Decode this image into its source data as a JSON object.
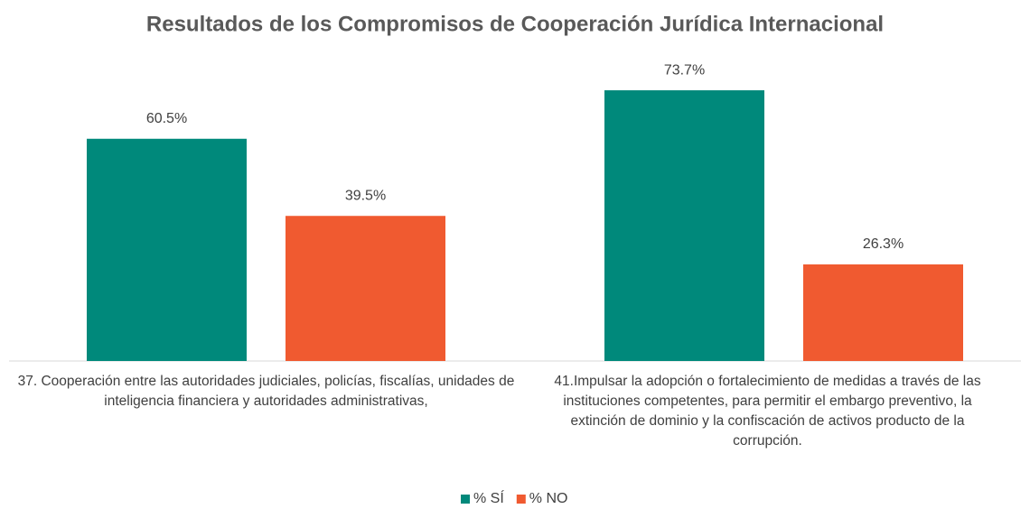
{
  "chart_data": {
    "type": "bar",
    "title": "Resultados de los Compromisos de Cooperación Jurídica Internacional",
    "categories": [
      "37. Cooperación entre las autoridades judiciales, policías, fiscalías, unidades de inteligencia financiera y autoridades administrativas,",
      "41.Impulsar la adopción o fortalecimiento de medidas a través de las instituciones competentes, para permitir el embargo preventivo, la extinción de dominio y la confiscación de activos producto de la corrupción."
    ],
    "series": [
      {
        "name": "% SÍ",
        "color": "#00897b",
        "values": [
          60.5,
          73.7
        ],
        "value_labels": [
          "60.5%",
          "73.7%"
        ]
      },
      {
        "name": "% NO",
        "color": "#f05a30",
        "values": [
          39.5,
          26.3
        ],
        "value_labels": [
          "39.5%",
          "26.3%"
        ]
      }
    ],
    "ylim": [
      0,
      80
    ],
    "legend": "bottom"
  }
}
